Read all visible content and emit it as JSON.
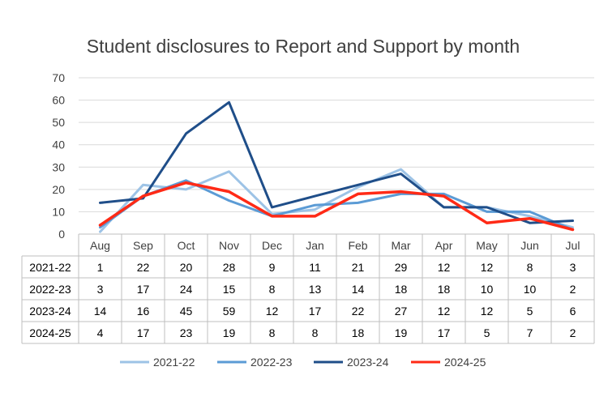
{
  "chart_data": {
    "type": "line",
    "title": "Student disclosures to Report and Support by month",
    "categories": [
      "Aug",
      "Sep",
      "Oct",
      "Nov",
      "Dec",
      "Jan",
      "Feb",
      "Mar",
      "Apr",
      "May",
      "Jun",
      "Jul"
    ],
    "yticks": [
      "0",
      "10",
      "20",
      "30",
      "40",
      "50",
      "60",
      "70"
    ],
    "ylim": [
      0,
      70
    ],
    "grid": true,
    "legend": "bottom",
    "data_table": true,
    "series": [
      {
        "name": "2021-22",
        "color": "#9DC3E6",
        "values": [
          1,
          22,
          20,
          28,
          9,
          11,
          21,
          29,
          12,
          12,
          8,
          3
        ]
      },
      {
        "name": "2022-23",
        "color": "#5B9BD5",
        "values": [
          3,
          17,
          24,
          15,
          8,
          13,
          14,
          18,
          18,
          10,
          10,
          2
        ]
      },
      {
        "name": "2023-24",
        "color": "#1F4E89",
        "values": [
          14,
          16,
          45,
          59,
          12,
          17,
          22,
          27,
          12,
          12,
          5,
          6
        ]
      },
      {
        "name": "2024-25",
        "color": "#FF2A16",
        "values": [
          4,
          17,
          23,
          19,
          8,
          8,
          18,
          19,
          17,
          5,
          7,
          2
        ]
      }
    ]
  }
}
